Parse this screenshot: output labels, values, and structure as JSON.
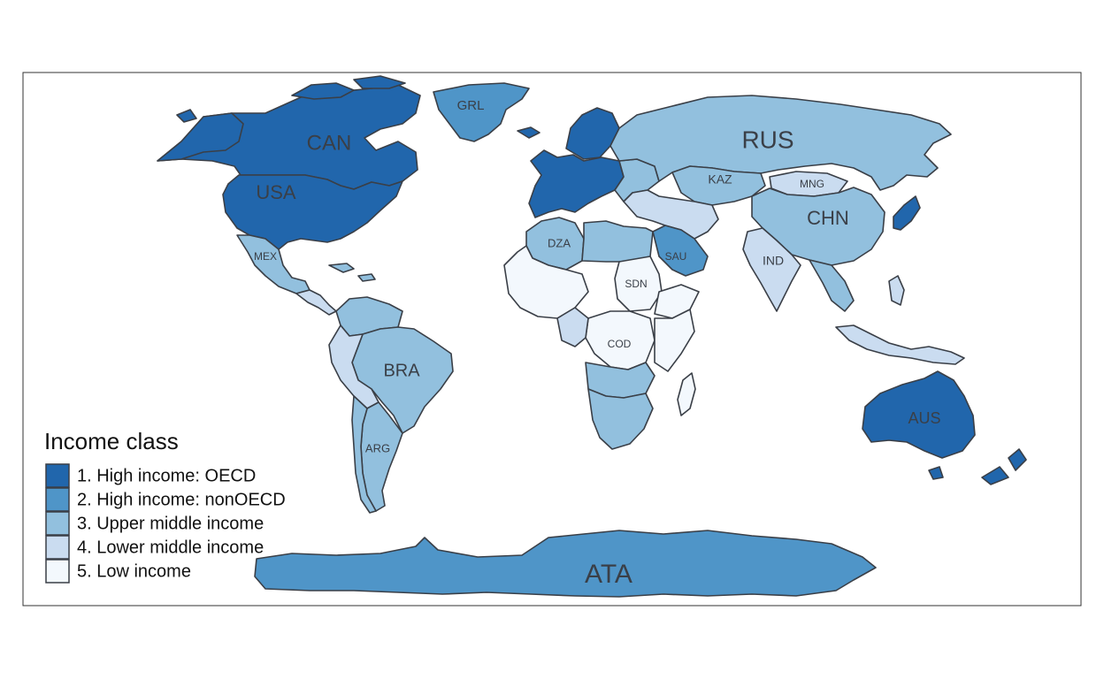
{
  "legend": {
    "title": "Income class",
    "classes": [
      {
        "label": "1. High income: OECD",
        "color": "#2166ac"
      },
      {
        "label": "2. High income: nonOECD",
        "color": "#4f95c8"
      },
      {
        "label": "3. Upper middle income",
        "color": "#92c0de"
      },
      {
        "label": "4. Lower middle income",
        "color": "#cadcf0"
      },
      {
        "label": "5. Low income",
        "color": "#f3f8fd"
      }
    ]
  },
  "labels": {
    "CAN": "CAN",
    "USA": "USA",
    "MEX": "MEX",
    "GRL": "GRL",
    "RUS": "RUS",
    "KAZ": "KAZ",
    "MNG": "MNG",
    "CHN": "CHN",
    "IND": "IND",
    "SAU": "SAU",
    "DZA": "DZA",
    "SDN": "SDN",
    "COD": "COD",
    "BRA": "BRA",
    "ARG": "ARG",
    "AUS": "AUS",
    "ATA": "ATA"
  }
}
